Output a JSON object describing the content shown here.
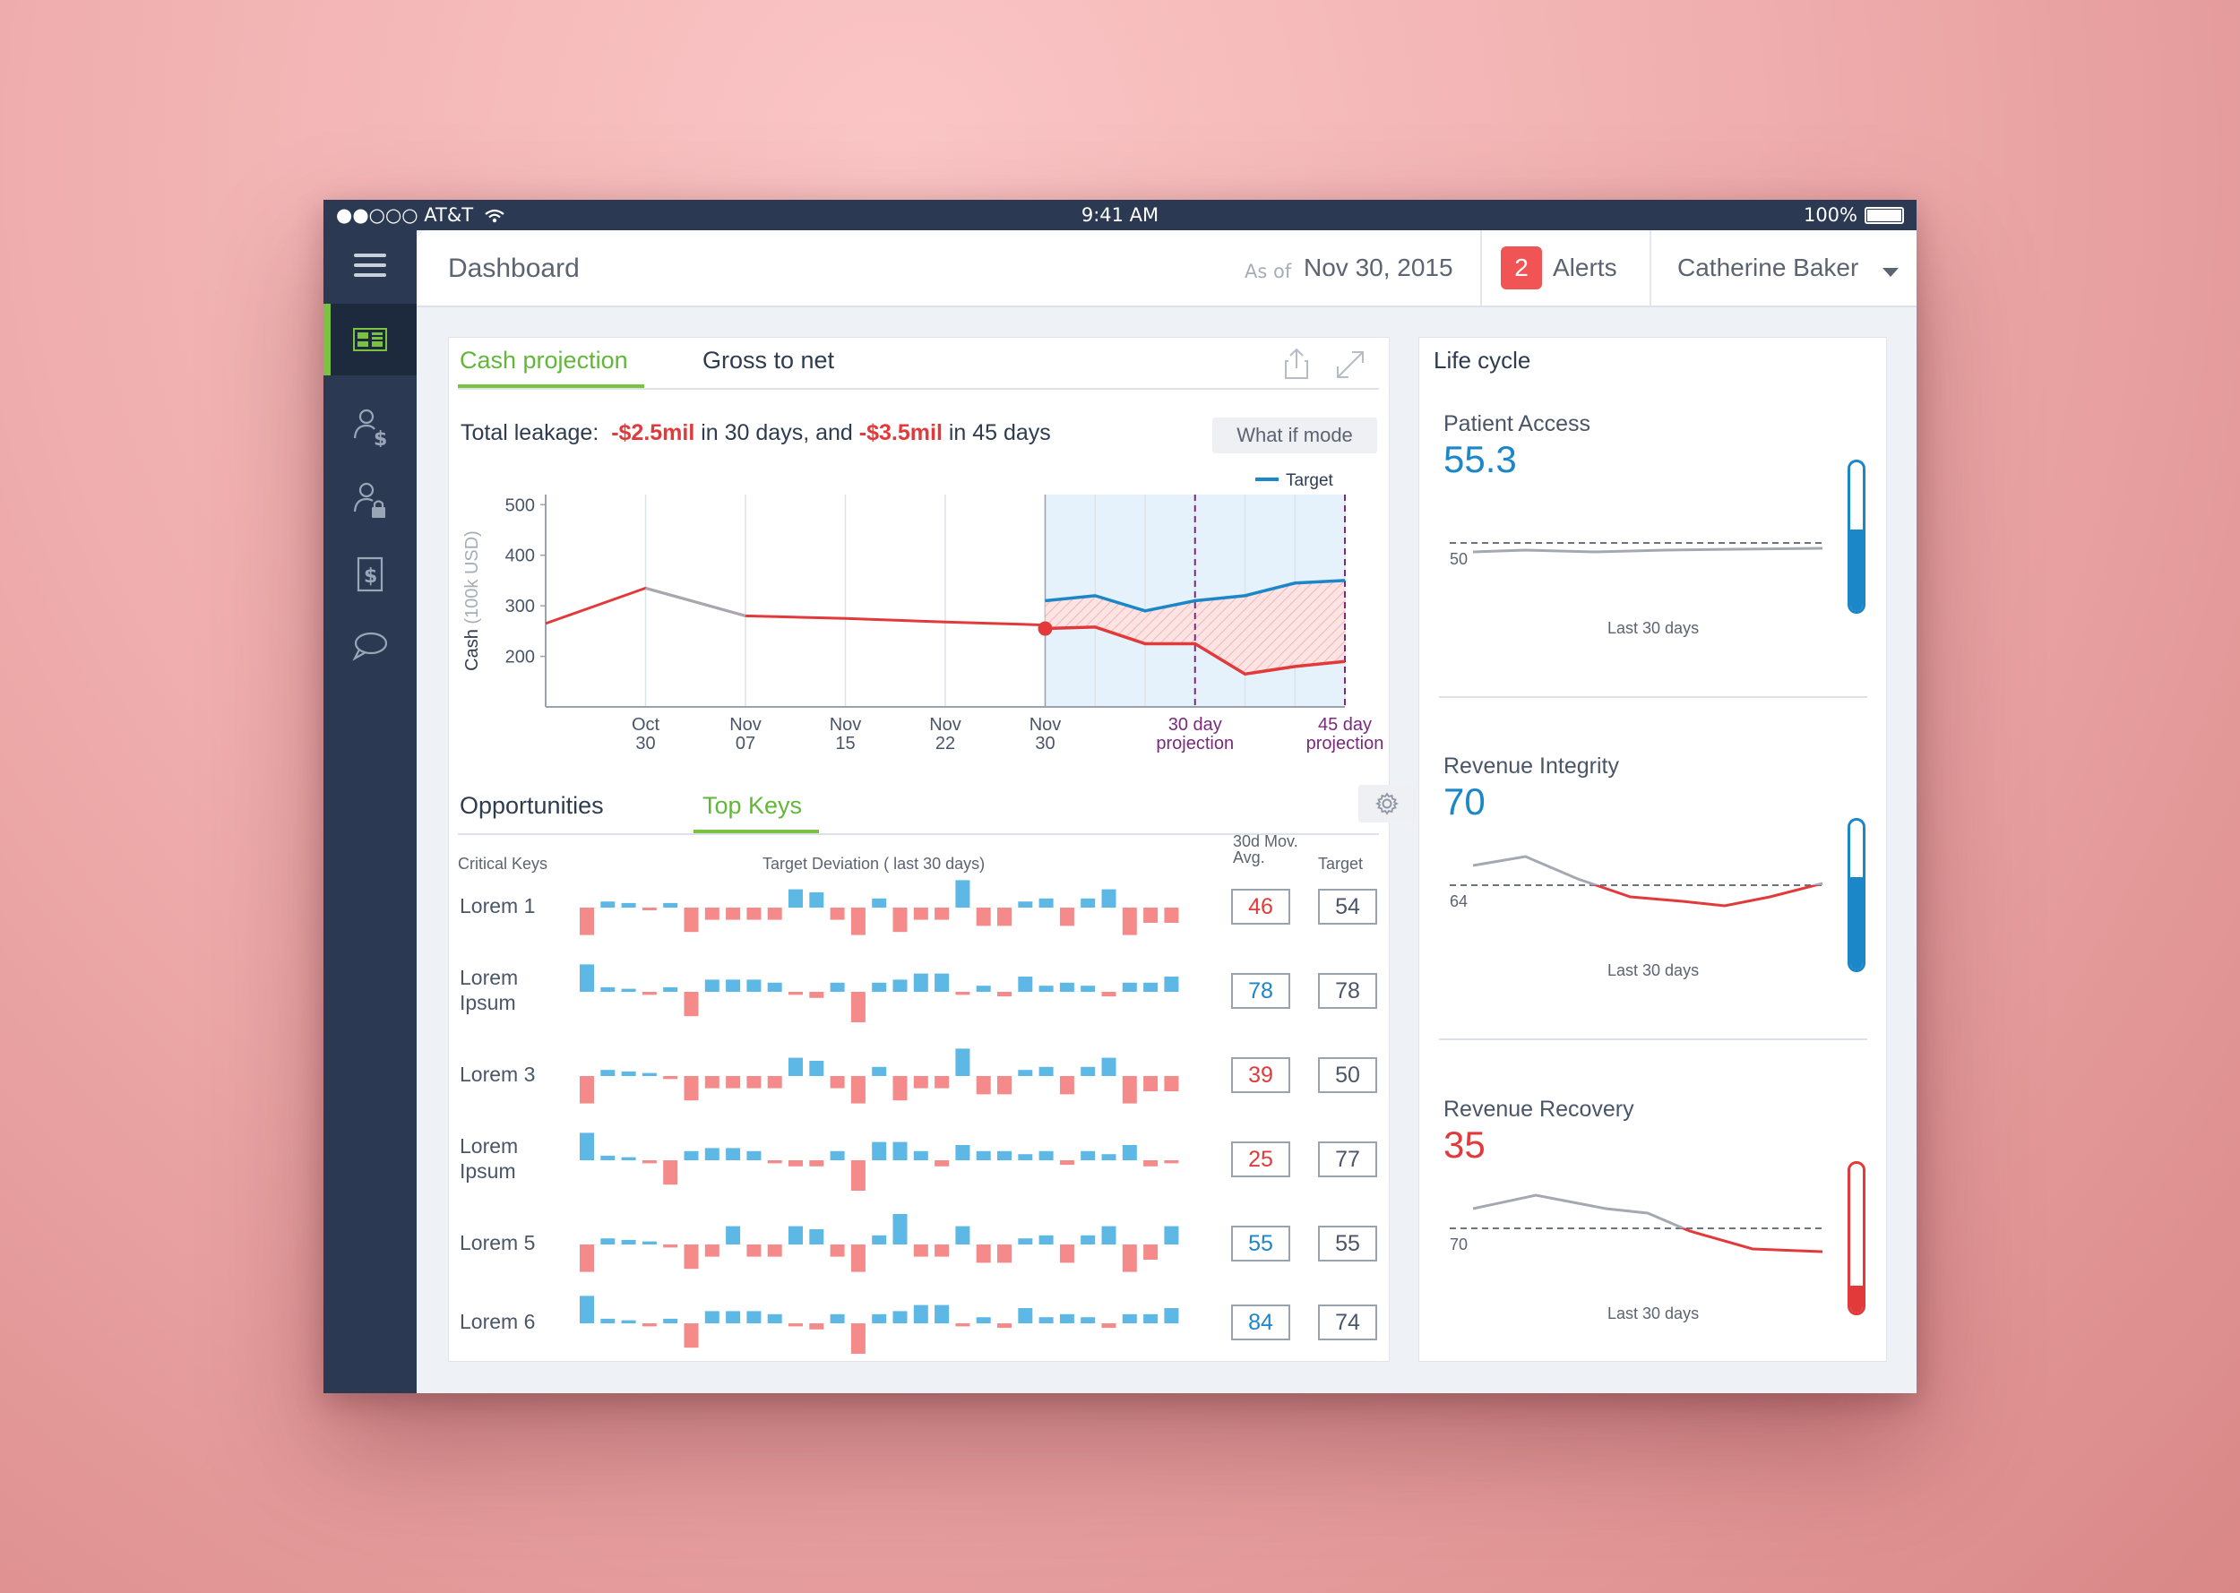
{
  "status": {
    "carrier": "●●○○○ AT&T",
    "time": "9:41 AM",
    "battery": "100%"
  },
  "nav": {
    "items": [
      "dashboard",
      "revenue-users",
      "secure-users",
      "billing",
      "messages"
    ],
    "active": 0
  },
  "header": {
    "title": "Dashboard",
    "as_of_label": "As of",
    "date": "Nov 30, 2015",
    "alert_count": "2",
    "alerts_label": "Alerts",
    "user": "Catherine Baker"
  },
  "cash": {
    "tabs": [
      "Cash projection",
      "Gross to net"
    ],
    "leak_prefix": "Total leakage:",
    "leak_30_value": "-$2.5mil",
    "leak_30_suffix": "in 30 days, and",
    "leak_45_value": "-$3.5mil",
    "leak_45_suffix": "in 45 days",
    "what_if": "What if mode"
  },
  "chart_data": {
    "type": "line",
    "ylabel": "Cash",
    "ylabel_unit": "(100k USD)",
    "yticks": [
      200,
      300,
      400,
      500
    ],
    "ylim": [
      100,
      520
    ],
    "legend": "Target",
    "x_tick_labels": [
      {
        "line1": "Oct",
        "line2": "30"
      },
      {
        "line1": "Nov",
        "line2": "07"
      },
      {
        "line1": "Nov",
        "line2": "15"
      },
      {
        "line1": "Nov",
        "line2": "22"
      },
      {
        "line1": "Nov",
        "line2": "30"
      },
      {
        "line1": "30 day",
        "line2": "projection"
      },
      {
        "line1": "45 day",
        "line2": "projection"
      }
    ],
    "series": [
      {
        "name": "Target",
        "color": "#1b86c8",
        "values": [
          [
            10,
            310
          ],
          [
            11,
            320
          ],
          [
            12,
            290
          ],
          [
            13,
            310
          ],
          [
            14,
            320
          ],
          [
            15,
            345
          ],
          [
            16,
            350
          ]
        ]
      }
    ],
    "history_line": {
      "color": "#e23a3a",
      "values": [
        [
          0,
          265
        ],
        [
          1,
          335
        ],
        [
          2,
          280
        ],
        [
          3,
          275
        ],
        [
          4,
          268
        ],
        [
          5,
          262
        ]
      ]
    },
    "history_gray_segment": [
      [
        1,
        335
      ],
      [
        2,
        280
      ]
    ],
    "projection_line": {
      "color": "#e23a3a",
      "values": [
        [
          10,
          255
        ],
        [
          11,
          258
        ],
        [
          12,
          225
        ],
        [
          13,
          225
        ],
        [
          14,
          165
        ],
        [
          15,
          180
        ],
        [
          16,
          190
        ]
      ]
    },
    "current_point": [
      10,
      255
    ],
    "projection_start": 10,
    "projection_30": 13,
    "projection_45": 16
  },
  "keys": {
    "tabs": [
      "Opportunities",
      "Top Keys"
    ],
    "col_critical": "Critical Keys",
    "col_deviation": "Target Deviation ( last 30 days)",
    "col_avg_line1": "30d Mov.",
    "col_avg_line2": "Avg.",
    "col_target": "Target",
    "rows": [
      {
        "label": "Lorem 1",
        "avg": "46",
        "target": "54",
        "avg_color": "#e23a3a",
        "devs": [
          -0.9,
          0.2,
          0.15,
          -0.05,
          0.15,
          -0.8,
          -0.4,
          -0.4,
          -0.4,
          -0.4,
          0.6,
          0.5,
          -0.4,
          -0.9,
          0.3,
          -0.8,
          -0.4,
          -0.4,
          0.9,
          -0.6,
          -0.6,
          0.2,
          0.3,
          -0.6,
          0.3,
          0.6,
          -0.9,
          -0.5,
          -0.5
        ]
      },
      {
        "label": "Lorem Ipsum",
        "avg": "78",
        "target": "78",
        "avg_color": "#1b86c8",
        "devs": [
          0.9,
          0.15,
          0.1,
          -0.1,
          0.15,
          -0.8,
          0.4,
          0.4,
          0.4,
          0.3,
          -0.1,
          -0.2,
          0.3,
          -1.0,
          0.3,
          0.4,
          0.6,
          0.6,
          -0.1,
          0.2,
          -0.15,
          0.5,
          0.2,
          0.3,
          0.2,
          -0.15,
          0.3,
          0.3,
          0.5
        ]
      },
      {
        "label": "Lorem 3",
        "avg": "39",
        "target": "50",
        "avg_color": "#e23a3a",
        "devs": [
          -0.9,
          0.2,
          0.15,
          0.1,
          -0.1,
          -0.8,
          -0.4,
          -0.4,
          -0.4,
          -0.4,
          0.6,
          0.5,
          -0.4,
          -0.9,
          0.3,
          -0.8,
          -0.4,
          -0.4,
          0.9,
          -0.6,
          -0.6,
          0.2,
          0.3,
          -0.6,
          0.3,
          0.6,
          -0.9,
          -0.5,
          -0.5
        ]
      },
      {
        "label": "Lorem Ipsum",
        "avg": "25",
        "target": "77",
        "avg_color": "#e23a3a",
        "devs": [
          0.9,
          0.15,
          0.1,
          -0.1,
          -0.8,
          0.3,
          0.4,
          0.4,
          0.3,
          -0.1,
          -0.2,
          -0.2,
          0.3,
          -1.0,
          0.6,
          0.6,
          0.3,
          -0.2,
          0.5,
          0.3,
          0.3,
          0.2,
          0.3,
          -0.15,
          0.3,
          0.2,
          0.5,
          -0.2,
          -0.1
        ]
      },
      {
        "label": "Lorem 5",
        "avg": "55",
        "target": "55",
        "avg_color": "#1b86c8",
        "devs": [
          -0.9,
          0.2,
          0.15,
          0.1,
          -0.1,
          -0.8,
          -0.4,
          0.6,
          -0.4,
          -0.4,
          0.6,
          0.5,
          -0.4,
          -0.9,
          0.3,
          1.0,
          -0.4,
          -0.4,
          0.6,
          -0.6,
          -0.6,
          0.2,
          0.3,
          -0.6,
          0.3,
          0.6,
          -0.9,
          -0.5,
          0.6
        ]
      },
      {
        "label": "Lorem 6",
        "avg": "84",
        "target": "74",
        "avg_color": "#1b86c8",
        "devs": [
          0.9,
          0.15,
          0.1,
          -0.1,
          0.15,
          -0.8,
          0.4,
          0.4,
          0.4,
          0.3,
          -0.1,
          -0.2,
          0.3,
          -1.0,
          0.3,
          0.4,
          0.6,
          0.6,
          -0.1,
          0.2,
          -0.15,
          0.5,
          0.2,
          0.3,
          0.2,
          -0.15,
          0.3,
          0.3,
          0.5
        ]
      }
    ]
  },
  "lifecycle": {
    "title": "Life cycle",
    "metrics": [
      {
        "name": "Patient Access",
        "value": "55.3",
        "value_color": "#1b86c8",
        "threshold": "50",
        "caption": "Last 30 days",
        "fill_fraction": 0.55,
        "fill_color": "#1b86c8",
        "border_color": "#1b86c8",
        "line": [
          [
            0,
            0.62
          ],
          [
            0.15,
            0.6
          ],
          [
            0.35,
            0.62
          ],
          [
            0.55,
            0.6
          ],
          [
            0.75,
            0.59
          ],
          [
            1,
            0.58
          ]
        ],
        "line_state": "above"
      },
      {
        "name": "Revenue Integrity",
        "value": "70",
        "value_color": "#1b86c8",
        "threshold": "64",
        "caption": "Last 30 days",
        "fill_fraction": 0.62,
        "fill_color": "#1b86c8",
        "border_color": "#1b86c8",
        "line": [
          [
            0,
            0.3
          ],
          [
            0.15,
            0.2
          ],
          [
            0.3,
            0.45
          ],
          [
            0.45,
            0.65
          ],
          [
            0.6,
            0.7
          ],
          [
            0.72,
            0.75
          ],
          [
            0.85,
            0.65
          ],
          [
            1,
            0.5
          ]
        ],
        "line_state": "mixed"
      },
      {
        "name": "Revenue Recovery",
        "value": "35",
        "value_color": "#e23a3a",
        "threshold": "70",
        "caption": "Last 30 days",
        "fill_fraction": 0.18,
        "fill_color": "#e23a3a",
        "border_color": "#e23a3a",
        "line": [
          [
            0,
            0.3
          ],
          [
            0.18,
            0.15
          ],
          [
            0.38,
            0.3
          ],
          [
            0.5,
            0.35
          ],
          [
            0.62,
            0.55
          ],
          [
            0.8,
            0.75
          ],
          [
            1,
            0.78
          ]
        ],
        "line_state": "below"
      }
    ]
  }
}
